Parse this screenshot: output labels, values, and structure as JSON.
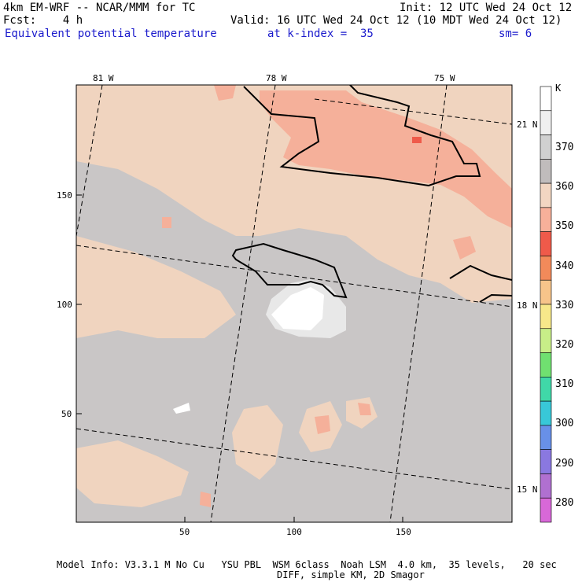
{
  "header": {
    "line1_left": "4km EM-WRF -- NCAR/MMM for TC",
    "line1_right": "Init: 12 UTC Wed 24 Oct 12",
    "line2_left": "Fcst:    4 h",
    "line2_right": "Valid: 16 UTC Wed 24 Oct 12 (10 MDT Wed 24 Oct 12)",
    "line3_field": "Equivalent potential temperature",
    "line3_level": "at k-index =  35",
    "line3_smooth": "sm= 6"
  },
  "map": {
    "top_lon_labels": [
      "81 W",
      "78 W",
      "75 W"
    ],
    "right_lat_labels": [
      "21 N",
      "18 N",
      "15 N"
    ],
    "x_axis_ticks": [
      "50",
      "100",
      "150"
    ],
    "y_axis_ticks": [
      "150",
      "100",
      "50"
    ],
    "x_range": [
      0,
      200
    ],
    "y_range": [
      0,
      200
    ],
    "field_colors": {
      "level_340_350": "#f5b09a",
      "level_350_360": "#f0d4bf",
      "level_360_370": "#c8c4c4",
      "level_370_plus": "#e8e8e8",
      "level_max": "#ffffff"
    }
  },
  "colorbar": {
    "unit": "K",
    "labels": [
      "370",
      "360",
      "350",
      "340",
      "330",
      "320",
      "310",
      "300",
      "290",
      "280"
    ],
    "colors": [
      "#ffffff",
      "#f0f0f0",
      "#d0d0d0",
      "#c0bcbc",
      "#f2d6c2",
      "#f7b09a",
      "#ef5a4a",
      "#f28a5a",
      "#f7c48a",
      "#f7e88a",
      "#c8ee88",
      "#70e070",
      "#40d8a8",
      "#38c8d8",
      "#6890e8",
      "#8a78e0",
      "#b070d0",
      "#d868d8"
    ]
  },
  "footer": {
    "line1": "Model Info: V3.3.1 M No Cu   YSU PBL  WSM 6class  Noah LSM  4.0 km,  35 levels,   20 sec",
    "line2": "DIFF, simple KM, 2D Smagor"
  }
}
